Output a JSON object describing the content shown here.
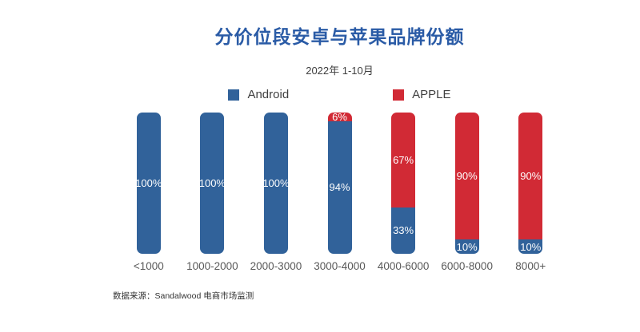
{
  "title": "分价位段安卓与苹果品牌份额",
  "subtitle": "2022年 1-10月",
  "source_note": "数据来源：Sandalwood 电商市场监测",
  "colors": {
    "title": "#2a5ba6",
    "android": "#31629a",
    "apple": "#d12a35",
    "background": "#ffffff",
    "axis_label": "#595959",
    "bar_label": "#ffffff"
  },
  "legend": [
    {
      "label": "Android",
      "color": "#31629a"
    },
    {
      "label": "APPLE",
      "color": "#d12a35"
    }
  ],
  "chart_data": {
    "type": "bar",
    "stacked": true,
    "title": "分价位段安卓与苹果品牌份额",
    "subtitle": "2022年 1-10月",
    "categories": [
      "<1000",
      "1000-2000",
      "2000-3000",
      "3000-4000",
      "4000-6000",
      "6000-8000",
      "8000+"
    ],
    "series": [
      {
        "name": "Android",
        "color": "#31629a",
        "values": [
          100,
          100,
          100,
          94,
          33,
          10,
          10
        ]
      },
      {
        "name": "APPLE",
        "color": "#d12a35",
        "values": [
          0,
          0,
          0,
          6,
          67,
          90,
          90
        ]
      }
    ],
    "unit": "%",
    "ylim": [
      0,
      100
    ],
    "grid": false,
    "legend_position": "top",
    "value_labels_shown": true
  }
}
